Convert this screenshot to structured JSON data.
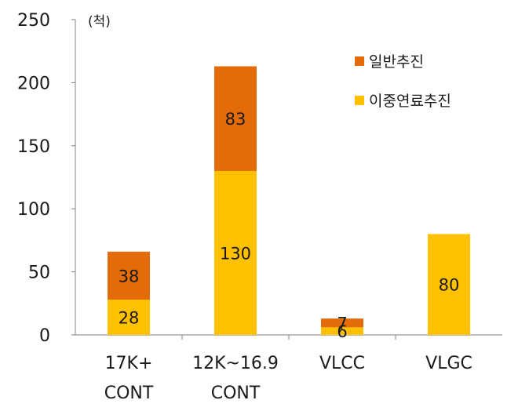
{
  "chart_data": {
    "type": "bar",
    "stacked": true,
    "unit_label": "(척)",
    "categories": [
      [
        "17K+",
        "CONT"
      ],
      [
        "12K~16.9",
        "CONT"
      ],
      [
        "VLCC"
      ],
      [
        "VLGC"
      ]
    ],
    "series": [
      {
        "name": "이중연료추진",
        "color": "#FFC000",
        "values": [
          28,
          130,
          6,
          80
        ]
      },
      {
        "name": "일반추진",
        "color": "#E36C09",
        "values": [
          38,
          83,
          7,
          0
        ]
      }
    ],
    "legend_order": [
      1,
      0
    ],
    "legend_position": "top-right",
    "ylim": [
      0,
      250
    ],
    "yticks": [
      0,
      50,
      100,
      150,
      200,
      250
    ],
    "grid": false
  }
}
